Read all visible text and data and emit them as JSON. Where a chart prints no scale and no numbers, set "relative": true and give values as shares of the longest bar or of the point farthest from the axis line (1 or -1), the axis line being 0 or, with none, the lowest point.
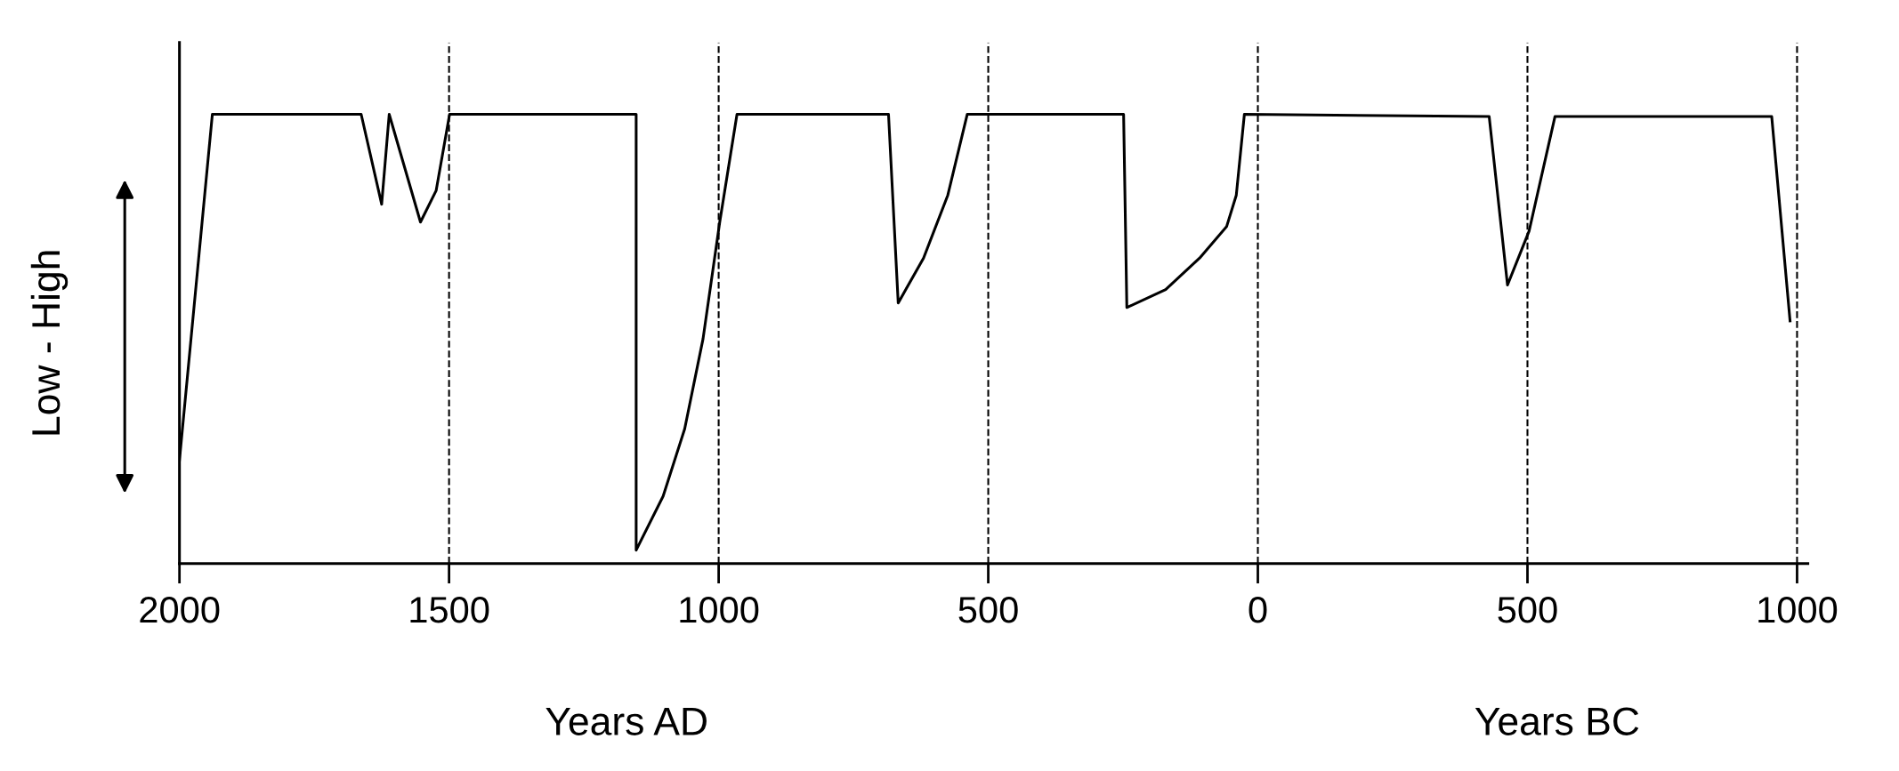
{
  "chart_data": {
    "type": "line",
    "relative": true,
    "ylabel": "Low - High",
    "annotations": [
      "Years AD",
      "Years BC"
    ],
    "xlim": [
      2000,
      -1020
    ],
    "xticks": [
      2000,
      1500,
      1000,
      500,
      0,
      {
        "value": -500,
        "label": "500"
      },
      {
        "value": -1000,
        "label": "1000"
      }
    ],
    "grid": false,
    "legend": false,
    "marker": "none",
    "line_style": "solid",
    "ref_lines": [
      {
        "axis": "x",
        "value": 1500,
        "line_style": "dashed"
      },
      {
        "axis": "x",
        "value": 1000,
        "line_style": "dashed"
      },
      {
        "axis": "x",
        "value": 500,
        "line_style": "dashed"
      },
      {
        "axis": "x",
        "value": 0,
        "line_style": "dashed"
      },
      {
        "axis": "x",
        "value": -500,
        "line_style": "dashed"
      },
      {
        "axis": "x",
        "value": -1000,
        "line_style": "dashed"
      }
    ],
    "series": [
      {
        "color": "#000000",
        "x": [
          2000,
          1939,
          1663,
          1625,
          1611,
          1553,
          1524,
          1499,
          1153,
          1153,
          1103,
          1063,
          1029,
          998,
          966,
          685,
          667,
          620,
          575,
          539,
          249,
          243,
          171,
          108,
          58,
          40,
          25,
          -429,
          -463,
          -503,
          -551,
          -953,
          -987
        ],
        "values": [
          0.23,
          1.0,
          1.0,
          0.8,
          1.0,
          0.76,
          0.83,
          1.0,
          1.0,
          0.03,
          0.15,
          0.3,
          0.5,
          0.76,
          1.0,
          1.0,
          0.58,
          0.68,
          0.82,
          1.0,
          1.0,
          0.57,
          0.61,
          0.68,
          0.75,
          0.82,
          1.0,
          0.995,
          0.62,
          0.74,
          0.995,
          0.995,
          0.54
        ]
      }
    ]
  }
}
